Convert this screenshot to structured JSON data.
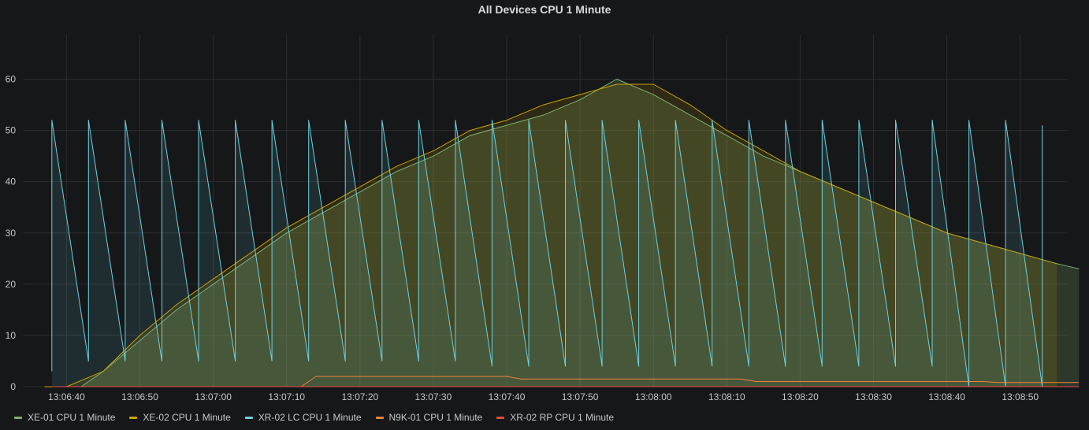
{
  "chart_data": {
    "type": "line",
    "title": "All Devices CPU 1 Minute",
    "xlabel": "",
    "ylabel": "",
    "ylim": [
      0,
      65
    ],
    "y_ticks": [
      0,
      10,
      20,
      30,
      40,
      50,
      60
    ],
    "x_start": "13:06:37",
    "x_end": "13:08:58",
    "x_ticks": [
      "13:06:40",
      "13:06:50",
      "13:07:00",
      "13:07:10",
      "13:07:20",
      "13:07:30",
      "13:07:40",
      "13:07:50",
      "13:08:00",
      "13:08:10",
      "13:08:20",
      "13:08:30",
      "13:08:40",
      "13:08:50"
    ],
    "grid": true,
    "legend_position": "bottom-left",
    "series": [
      {
        "name": "XE-01 CPU 1 Minute",
        "color": "#7eb26d",
        "fill": true,
        "points": [
          [
            "13:06:37",
            0
          ],
          [
            "13:06:42",
            0
          ],
          [
            "13:06:45",
            3
          ],
          [
            "13:06:50",
            9
          ],
          [
            "13:06:55",
            15
          ],
          [
            "13:07:00",
            20
          ],
          [
            "13:07:05",
            25
          ],
          [
            "13:07:10",
            30
          ],
          [
            "13:07:15",
            34
          ],
          [
            "13:07:20",
            38
          ],
          [
            "13:07:25",
            42
          ],
          [
            "13:07:30",
            45
          ],
          [
            "13:07:35",
            49
          ],
          [
            "13:07:40",
            51
          ],
          [
            "13:07:45",
            53
          ],
          [
            "13:07:50",
            56
          ],
          [
            "13:07:55",
            60
          ],
          [
            "13:08:00",
            57
          ],
          [
            "13:08:05",
            53
          ],
          [
            "13:08:10",
            49
          ],
          [
            "13:08:15",
            45
          ],
          [
            "13:08:20",
            42
          ],
          [
            "13:08:25",
            39
          ],
          [
            "13:08:30",
            36
          ],
          [
            "13:08:35",
            33
          ],
          [
            "13:08:40",
            30
          ],
          [
            "13:08:45",
            28
          ],
          [
            "13:08:50",
            26
          ],
          [
            "13:08:55",
            24
          ],
          [
            "13:08:58",
            23
          ]
        ]
      },
      {
        "name": "XE-02 CPU 1 Minute",
        "color": "#cca300",
        "fill": true,
        "points": [
          [
            "13:06:37",
            0
          ],
          [
            "13:06:40",
            0
          ],
          [
            "13:06:45",
            3
          ],
          [
            "13:06:50",
            10
          ],
          [
            "13:06:55",
            16
          ],
          [
            "13:07:00",
            21
          ],
          [
            "13:07:05",
            26
          ],
          [
            "13:07:10",
            31
          ],
          [
            "13:07:15",
            35
          ],
          [
            "13:07:20",
            39
          ],
          [
            "13:07:25",
            43
          ],
          [
            "13:07:30",
            46
          ],
          [
            "13:07:35",
            50
          ],
          [
            "13:07:40",
            52
          ],
          [
            "13:07:45",
            55
          ],
          [
            "13:07:50",
            57
          ],
          [
            "13:07:55",
            59
          ],
          [
            "13:08:00",
            59
          ],
          [
            "13:08:05",
            55
          ],
          [
            "13:08:10",
            50
          ],
          [
            "13:08:15",
            46
          ],
          [
            "13:08:20",
            42
          ],
          [
            "13:08:25",
            39
          ],
          [
            "13:08:30",
            36
          ],
          [
            "13:08:35",
            33
          ],
          [
            "13:08:40",
            30
          ],
          [
            "13:08:45",
            28
          ],
          [
            "13:08:50",
            26
          ],
          [
            "13:08:55",
            24
          ]
        ]
      },
      {
        "name": "XR-02 LC CPU 1 Minute",
        "color": "#6ed0e0",
        "fill": true,
        "points": [
          [
            "13:06:38",
            3
          ],
          [
            "13:06:38",
            52
          ],
          [
            "13:06:43",
            5
          ],
          [
            "13:06:43",
            52
          ],
          [
            "13:06:48",
            5
          ],
          [
            "13:06:48",
            52
          ],
          [
            "13:06:53",
            5
          ],
          [
            "13:06:53",
            52
          ],
          [
            "13:06:58",
            5
          ],
          [
            "13:06:58",
            52
          ],
          [
            "13:07:03",
            5
          ],
          [
            "13:07:03",
            52
          ],
          [
            "13:07:08",
            5
          ],
          [
            "13:07:08",
            52
          ],
          [
            "13:07:13",
            5
          ],
          [
            "13:07:13",
            52
          ],
          [
            "13:07:18",
            5
          ],
          [
            "13:07:18",
            52
          ],
          [
            "13:07:23",
            5
          ],
          [
            "13:07:23",
            52
          ],
          [
            "13:07:28",
            5
          ],
          [
            "13:07:28",
            52
          ],
          [
            "13:07:33",
            5
          ],
          [
            "13:07:33",
            52
          ],
          [
            "13:07:38",
            4
          ],
          [
            "13:07:38",
            52
          ],
          [
            "13:07:43",
            4
          ],
          [
            "13:07:43",
            52
          ],
          [
            "13:07:48",
            4
          ],
          [
            "13:07:48",
            52
          ],
          [
            "13:07:53",
            4
          ],
          [
            "13:07:53",
            52
          ],
          [
            "13:07:58",
            4
          ],
          [
            "13:07:58",
            52
          ],
          [
            "13:08:03",
            4
          ],
          [
            "13:08:03",
            52
          ],
          [
            "13:08:08",
            4
          ],
          [
            "13:08:08",
            52
          ],
          [
            "13:08:13",
            4
          ],
          [
            "13:08:13",
            52
          ],
          [
            "13:08:18",
            4
          ],
          [
            "13:08:18",
            52
          ],
          [
            "13:08:23",
            4
          ],
          [
            "13:08:23",
            52
          ],
          [
            "13:08:28",
            4
          ],
          [
            "13:08:28",
            52
          ],
          [
            "13:08:33",
            4
          ],
          [
            "13:08:33",
            52
          ],
          [
            "13:08:38",
            4
          ],
          [
            "13:08:38",
            52
          ],
          [
            "13:08:43",
            0
          ],
          [
            "13:08:43",
            52
          ],
          [
            "13:08:48",
            0
          ],
          [
            "13:08:48",
            52
          ],
          [
            "13:08:53",
            0
          ],
          [
            "13:08:53",
            51
          ]
        ]
      },
      {
        "name": "N9K-01 CPU 1 Minute",
        "color": "#ef843c",
        "fill": false,
        "points": [
          [
            "13:06:38",
            0
          ],
          [
            "13:07:12",
            0
          ],
          [
            "13:07:14",
            2
          ],
          [
            "13:07:40",
            2
          ],
          [
            "13:07:42",
            1.5
          ],
          [
            "13:08:12",
            1.5
          ],
          [
            "13:08:14",
            1
          ],
          [
            "13:08:45",
            1
          ],
          [
            "13:08:47",
            0.8
          ],
          [
            "13:08:58",
            0.8
          ]
        ]
      },
      {
        "name": "XR-02 RP CPU 1 Minute",
        "color": "#e24d42",
        "fill": false,
        "points": [
          [
            "13:06:38",
            0
          ],
          [
            "13:08:58",
            0
          ]
        ]
      }
    ]
  }
}
